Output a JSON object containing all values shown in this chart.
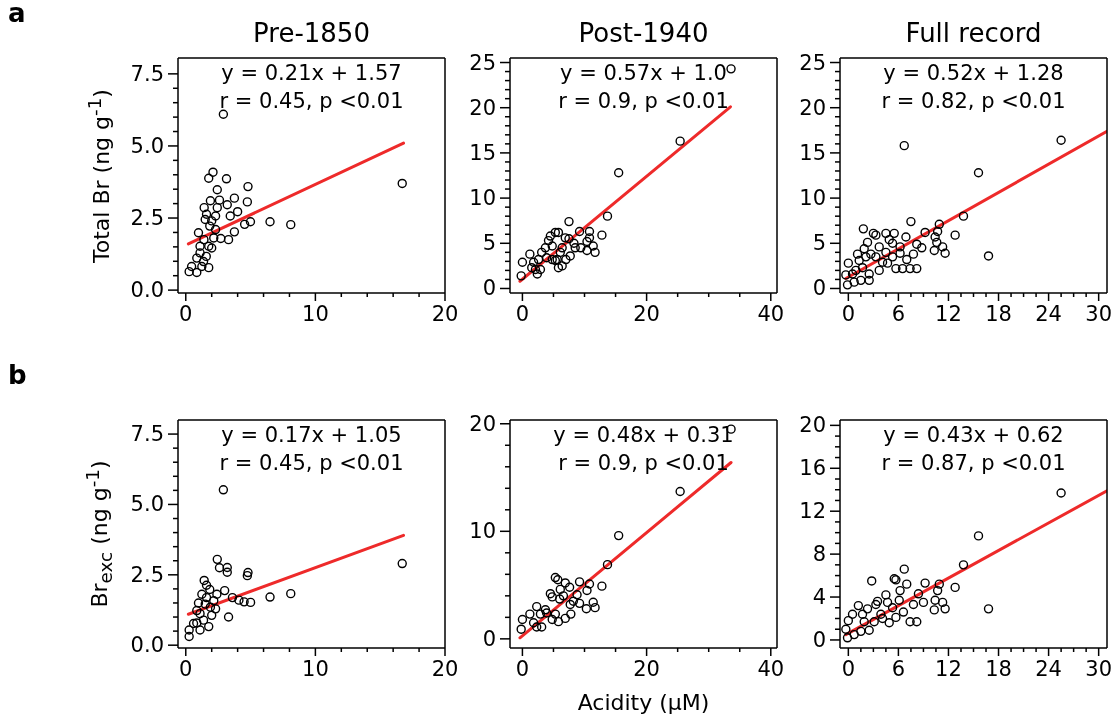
{
  "chart_data": [
    {
      "type": "scatter",
      "title": "Pre-1850",
      "ylabel": "Total Br (ng g$^{-1}$)",
      "annotations": [
        "a",
        "y = 0.21x + 1.57",
        "r = 0.45, p <0.01"
      ],
      "xlim": [
        -0.6,
        20
      ],
      "ylim": [
        -0.1,
        8.05
      ],
      "xticks": [
        0,
        {
          "value": 2,
          "label": null
        },
        {
          "value": 4,
          "label": null
        },
        {
          "value": 6,
          "label": null
        },
        {
          "value": 8,
          "label": null
        },
        10,
        {
          "value": 12,
          "label": null
        },
        {
          "value": 14,
          "label": null
        },
        {
          "value": 16,
          "label": null
        },
        {
          "value": 18,
          "label": null
        },
        20
      ],
      "yticks": [
        {
          "value": 0,
          "label": "0.0"
        },
        {
          "value": 0.5,
          "label": null
        },
        {
          "value": 1,
          "label": null
        },
        {
          "value": 1.5,
          "label": null
        },
        {
          "value": 2,
          "label": null
        },
        {
          "value": 2.5,
          "label": "2.5"
        },
        {
          "value": 3,
          "label": null
        },
        {
          "value": 3.5,
          "label": null
        },
        {
          "value": 4,
          "label": null
        },
        {
          "value": 4.5,
          "label": null
        },
        {
          "value": 5,
          "label": "5.0"
        },
        {
          "value": 5.5,
          "label": null
        },
        {
          "value": 6,
          "label": null
        },
        {
          "value": 6.5,
          "label": null
        },
        {
          "value": 7,
          "label": null
        },
        {
          "value": 7.5,
          "label": "7.5"
        }
      ],
      "series": [
        {
          "type": "scatter",
          "marker": "circle",
          "color": "#000000",
          "x": [
            2.9,
            2.1,
            1.77,
            3.14,
            4.8,
            2.43,
            16.7,
            3.75,
            1.9,
            2.6,
            4.75,
            3.2,
            1.42,
            4.0,
            3.43,
            2.3,
            1.5,
            6.5,
            8.1,
            4.99,
            4.54,
            3.75,
            3.3,
            2.7,
            0.98,
            1.4,
            1.77,
            1.1,
            0.85,
            1.77,
            0.26,
            0.85,
            1.37,
            2.0,
            2.3,
            1.85,
            1.1,
            1.58,
            2.16,
            1.24,
            0.45,
            1.6,
            2.0,
            2.43
          ],
          "values": [
            6.1,
            4.09,
            3.88,
            3.86,
            3.59,
            3.48,
            3.7,
            3.19,
            3.1,
            3.12,
            3.06,
            2.96,
            2.86,
            2.72,
            2.57,
            2.57,
            2.45,
            2.37,
            2.27,
            2.37,
            2.28,
            2.02,
            1.75,
            1.79,
            1.99,
            1.75,
            1.52,
            1.29,
            1.11,
            0.78,
            0.64,
            0.61,
            0.99,
            1.46,
            2.1,
            2.22,
            1.52,
            1.17,
            1.81,
            0.82,
            0.82,
            2.63,
            2.4,
            2.86
          ]
        },
        {
          "type": "line",
          "marker": "none",
          "color": "#ee2a2a",
          "x": [
            0.2,
            16.8
          ],
          "values": [
            1.6,
            5.1
          ]
        }
      ]
    },
    {
      "type": "scatter",
      "title": "Post-1940",
      "annotations": [
        "y = 0.57x + 1.0",
        "r = 0.9, p <0.01"
      ],
      "xlim": [
        -2,
        41
      ],
      "ylim": [
        -0.5,
        25.5
      ],
      "xticks": [
        0,
        {
          "value": 5,
          "label": null
        },
        {
          "value": 10,
          "label": null
        },
        {
          "value": 15,
          "label": null
        },
        20,
        {
          "value": 25,
          "label": null
        },
        {
          "value": 30,
          "label": null
        },
        {
          "value": 35,
          "label": null
        },
        40
      ],
      "yticks": [
        0,
        {
          "value": 1,
          "label": null
        },
        {
          "value": 2,
          "label": null
        },
        {
          "value": 3,
          "label": null
        },
        {
          "value": 4,
          "label": null
        },
        5,
        {
          "value": 6,
          "label": null
        },
        {
          "value": 7,
          "label": null
        },
        {
          "value": 8,
          "label": null
        },
        {
          "value": 9,
          "label": null
        },
        10,
        {
          "value": 11,
          "label": null
        },
        {
          "value": 12,
          "label": null
        },
        {
          "value": 13,
          "label": null
        },
        {
          "value": 14,
          "label": null
        },
        15,
        {
          "value": 16,
          "label": null
        },
        {
          "value": 17,
          "label": null
        },
        {
          "value": 18,
          "label": null
        },
        {
          "value": 19,
          "label": null
        },
        20,
        {
          "value": 21,
          "label": null
        },
        {
          "value": 22,
          "label": null
        },
        {
          "value": 23,
          "label": null
        },
        {
          "value": 24,
          "label": null
        },
        25
      ],
      "series": [
        {
          "type": "scatter",
          "marker": "circle",
          "color": "#000000",
          "x": [
            33.6,
            25.4,
            15.5,
            13.7,
            7.5,
            12.8,
            9.2,
            10.8,
            10.8,
            10.4,
            11.4,
            11.7,
            10.4,
            9.4,
            8.3,
            8.5,
            7.7,
            7.0,
            6.4,
            5.8,
            5.6,
            6.4,
            6.9,
            5.8,
            5.3,
            4.5,
            4.2,
            4.8,
            3.7,
            3.1,
            3.9,
            4.8,
            5.3,
            2.6,
            1.8,
            1.2,
            0,
            2.1,
            1.5,
            2.4,
            2.9,
            -0.2,
            6.1,
            7.5
          ],
          "values": [
            24.3,
            16.3,
            12.8,
            8.0,
            7.4,
            5.9,
            6.3,
            6.3,
            5.6,
            5.2,
            4.7,
            4.0,
            4.2,
            4.5,
            5.0,
            4.5,
            3.6,
            3.2,
            2.5,
            2.3,
            3.2,
            4.5,
            5.6,
            6.2,
            6.2,
            5.8,
            5.3,
            4.7,
            4.5,
            4.0,
            3.4,
            3.2,
            3.1,
            3.2,
            2.9,
            3.8,
            2.9,
            2.1,
            2.3,
            1.6,
            2.1,
            1.4,
            4.0,
            5.5
          ]
        },
        {
          "type": "line",
          "marker": "none",
          "color": "#ee2a2a",
          "x": [
            -0.4,
            33.5
          ],
          "values": [
            0.8,
            20.1
          ]
        }
      ]
    },
    {
      "type": "scatter",
      "title": "Full record",
      "annotations": [
        "y = 0.52x + 1.28",
        "r = 0.82, p <0.01"
      ],
      "xlim": [
        -1,
        31
      ],
      "ylim": [
        -0.5,
        25.5
      ],
      "xticks": [
        0,
        {
          "value": 1.5,
          "label": null
        },
        {
          "value": 3,
          "label": null
        },
        {
          "value": 4.5,
          "label": null
        },
        6,
        {
          "value": 7.5,
          "label": null
        },
        {
          "value": 9,
          "label": null
        },
        {
          "value": 10.5,
          "label": null
        },
        12,
        {
          "value": 13.5,
          "label": null
        },
        {
          "value": 15,
          "label": null
        },
        {
          "value": 16.5,
          "label": null
        },
        18,
        {
          "value": 19.5,
          "label": null
        },
        {
          "value": 21,
          "label": null
        },
        {
          "value": 22.5,
          "label": null
        },
        24,
        {
          "value": 25.5,
          "label": null
        },
        {
          "value": 27,
          "label": null
        },
        {
          "value": 28.5,
          "label": null
        },
        30
      ],
      "yticks": [
        0,
        {
          "value": 1,
          "label": null
        },
        {
          "value": 2,
          "label": null
        },
        {
          "value": 3,
          "label": null
        },
        {
          "value": 4,
          "label": null
        },
        5,
        {
          "value": 6,
          "label": null
        },
        {
          "value": 7,
          "label": null
        },
        {
          "value": 8,
          "label": null
        },
        {
          "value": 9,
          "label": null
        },
        10,
        {
          "value": 11,
          "label": null
        },
        {
          "value": 12,
          "label": null
        },
        {
          "value": 13,
          "label": null
        },
        {
          "value": 14,
          "label": null
        },
        15,
        {
          "value": 16,
          "label": null
        },
        {
          "value": 17,
          "label": null
        },
        {
          "value": 18,
          "label": null
        },
        {
          "value": 19,
          "label": null
        },
        20,
        {
          "value": 21,
          "label": null
        },
        {
          "value": 22,
          "label": null
        },
        {
          "value": 23,
          "label": null
        },
        {
          "value": 24,
          "label": null
        },
        25
      ],
      "series": [
        {
          "type": "scatter",
          "marker": "circle",
          "color": "#000000",
          "x": [
            25.5,
            6.7,
            15.6,
            16.8,
            13.8,
            7.5,
            12.8,
            10.9,
            10.7,
            10.4,
            10.6,
            11.3,
            11.6,
            10.3,
            9.2,
            8.2,
            8.8,
            8.2,
            7.4,
            6.5,
            5.7,
            7.0,
            7.8,
            6.9,
            5.5,
            4.9,
            4.5,
            3.3,
            3.0,
            1.8,
            2.3,
            3.7,
            4.5,
            5.3,
            6.2,
            4.7,
            3.7,
            2.5,
            1.7,
            1.1,
            1.3,
            2.1,
            2.7,
            0.5,
            0,
            -0.3,
            -0.1,
            0.7,
            1.5,
            2.5,
            0.9,
            1.9,
            3.3,
            4.1,
            5.3,
            6.2
          ],
          "values": [
            16.4,
            15.8,
            12.8,
            3.6,
            8.0,
            7.4,
            5.9,
            7.1,
            6.3,
            5.7,
            5.1,
            4.6,
            3.9,
            4.2,
            6.2,
            4.9,
            4.5,
            2.2,
            2.2,
            2.2,
            2.2,
            3.2,
            3.8,
            5.7,
            6.1,
            5.4,
            6.1,
            5.9,
            6.1,
            6.6,
            5.1,
            4.6,
            4.0,
            3.5,
            3.9,
            2.8,
            2.0,
            1.6,
            2.3,
            3.8,
            3.1,
            3.5,
            3.8,
            1.6,
            2.8,
            1.5,
            0.4,
            0.7,
            0.9,
            0.9,
            2.0,
            4.4,
            3.5,
            2.9,
            5.0,
            4.6
          ]
        },
        {
          "type": "line",
          "marker": "none",
          "color": "#ee2a2a",
          "x": [
            -0.3,
            31
          ],
          "values": [
            1.1,
            17.4
          ]
        }
      ]
    },
    {
      "type": "scatter",
      "ylabel": "Br$_{exc}$ (ng g$^{-1}$)",
      "annotations": [
        "b",
        "y = 0.17x + 1.05",
        "r = 0.45, p <0.01"
      ],
      "xlim": [
        -0.6,
        20
      ],
      "ylim": [
        -0.1,
        8.0
      ],
      "xticks": [
        0,
        {
          "value": 2,
          "label": null
        },
        {
          "value": 4,
          "label": null
        },
        {
          "value": 6,
          "label": null
        },
        {
          "value": 8,
          "label": null
        },
        10,
        {
          "value": 12,
          "label": null
        },
        {
          "value": 14,
          "label": null
        },
        {
          "value": 16,
          "label": null
        },
        {
          "value": 18,
          "label": null
        },
        20
      ],
      "yticks": [
        {
          "value": 0,
          "label": "0.0"
        },
        {
          "value": 0.5,
          "label": null
        },
        {
          "value": 1,
          "label": null
        },
        {
          "value": 1.5,
          "label": null
        },
        {
          "value": 2,
          "label": null
        },
        {
          "value": 2.5,
          "label": "2.5"
        },
        {
          "value": 3,
          "label": null
        },
        {
          "value": 3.5,
          "label": null
        },
        {
          "value": 4,
          "label": null
        },
        {
          "value": 4.5,
          "label": null
        },
        {
          "value": 5,
          "label": "5.0"
        },
        {
          "value": 5.5,
          "label": null
        },
        {
          "value": 6,
          "label": null
        },
        {
          "value": 6.5,
          "label": null
        },
        {
          "value": 7,
          "label": null
        },
        {
          "value": 7.5,
          "label": "7.5"
        }
      ],
      "series": [
        {
          "type": "scatter",
          "marker": "circle",
          "color": "#000000",
          "x": [
            2.9,
            16.7,
            2.43,
            2.6,
            3.2,
            3.2,
            4.8,
            4.75,
            6.5,
            8.1,
            5.0,
            4.5,
            4.1,
            3.6,
            3.3,
            3.0,
            2.4,
            1.42,
            1.6,
            1.85,
            1.24,
            0.98,
            1.5,
            2.16,
            1.9,
            1.1,
            1.37,
            0.85,
            0.26,
            0.26,
            1.77,
            2.0,
            2.3,
            1.1,
            0.6,
            1.6,
            0.85
          ],
          "values": [
            5.52,
            2.9,
            3.05,
            2.75,
            2.76,
            2.59,
            2.58,
            2.47,
            1.71,
            1.83,
            1.52,
            1.54,
            1.6,
            1.69,
            1.0,
            1.94,
            1.81,
            2.3,
            2.13,
            1.98,
            1.81,
            1.5,
            1.46,
            1.58,
            1.35,
            1.12,
            0.89,
            0.79,
            0.54,
            0.31,
            0.66,
            1.06,
            1.29,
            0.54,
            0.77,
            1.69,
            1.23
          ]
        },
        {
          "type": "line",
          "marker": "none",
          "color": "#ee2a2a",
          "x": [
            0.2,
            16.8
          ],
          "values": [
            1.1,
            3.9
          ]
        }
      ]
    },
    {
      "type": "scatter",
      "xlabel": "Acidity (µM)",
      "annotations": [
        "y = 0.48x + 0.31",
        "r = 0.9, p <0.01"
      ],
      "xlim": [
        -2,
        41
      ],
      "ylim": [
        -0.85,
        20.35
      ],
      "xticks": [
        0,
        {
          "value": 5,
          "label": null
        },
        {
          "value": 10,
          "label": null
        },
        {
          "value": 15,
          "label": null
        },
        20,
        {
          "value": 25,
          "label": null
        },
        {
          "value": 30,
          "label": null
        },
        {
          "value": 35,
          "label": null
        },
        40
      ],
      "yticks": [
        0,
        {
          "value": 2,
          "label": null
        },
        {
          "value": 4,
          "label": null
        },
        {
          "value": 6,
          "label": null
        },
        {
          "value": 8,
          "label": null
        },
        10,
        {
          "value": 12,
          "label": null
        },
        {
          "value": 14,
          "label": null
        },
        {
          "value": 16,
          "label": null
        },
        {
          "value": 18,
          "label": null
        },
        20
      ],
      "series": [
        {
          "type": "scatter",
          "marker": "circle",
          "color": "#000000",
          "x": [
            33.6,
            25.4,
            15.5,
            13.7,
            12.8,
            9.2,
            10.8,
            10.4,
            11.4,
            11.7,
            10.3,
            9.2,
            8.2,
            8.8,
            7.6,
            6.9,
            5.3,
            5.7,
            6.1,
            6.6,
            4.5,
            4.8,
            6.0,
            7.8,
            6.9,
            5.8,
            4.8,
            5.3,
            3.7,
            2.9,
            2.3,
            1.2,
            0,
            -0.2,
            1.8,
            2.3,
            3.1,
            3.9,
            7.7
          ],
          "values": [
            19.5,
            13.7,
            9.6,
            6.9,
            4.9,
            5.3,
            5.1,
            4.5,
            3.4,
            2.9,
            2.8,
            3.3,
            3.5,
            4.1,
            4.8,
            5.2,
            5.7,
            5.5,
            4.6,
            4.0,
            4.2,
            3.9,
            3.7,
            2.3,
            1.9,
            1.6,
            1.8,
            2.3,
            2.7,
            2.3,
            3.0,
            2.3,
            1.8,
            0.9,
            1.5,
            1.1,
            1.1,
            2.4,
            3.2
          ]
        },
        {
          "type": "line",
          "marker": "none",
          "color": "#ee2a2a",
          "x": [
            -0.4,
            33.6
          ],
          "values": [
            0.1,
            16.4
          ]
        }
      ]
    },
    {
      "type": "scatter",
      "annotations": [
        "y = 0.43x + 0.62",
        "r = 0.87, p <0.01"
      ],
      "xlim": [
        -1,
        31
      ],
      "ylim": [
        -0.75,
        20.5
      ],
      "xticks": [
        0,
        {
          "value": 1.5,
          "label": null
        },
        {
          "value": 3,
          "label": null
        },
        {
          "value": 4.5,
          "label": null
        },
        6,
        {
          "value": 7.5,
          "label": null
        },
        {
          "value": 9,
          "label": null
        },
        {
          "value": 10.5,
          "label": null
        },
        12,
        {
          "value": 13.5,
          "label": null
        },
        {
          "value": 15,
          "label": null
        },
        {
          "value": 16.5,
          "label": null
        },
        18,
        {
          "value": 19.5,
          "label": null
        },
        {
          "value": 21,
          "label": null
        },
        {
          "value": 22.5,
          "label": null
        },
        24,
        {
          "value": 25.5,
          "label": null
        },
        {
          "value": 27,
          "label": null
        },
        {
          "value": 28.5,
          "label": null
        },
        30
      ],
      "yticks": [
        0,
        {
          "value": 1,
          "label": null
        },
        {
          "value": 2,
          "label": null
        },
        {
          "value": 3,
          "label": null
        },
        4,
        {
          "value": 5,
          "label": null
        },
        {
          "value": 6,
          "label": null
        },
        {
          "value": 7,
          "label": null
        },
        8,
        {
          "value": 9,
          "label": null
        },
        {
          "value": 10,
          "label": null
        },
        {
          "value": 11,
          "label": null
        },
        12,
        {
          "value": 13,
          "label": null
        },
        {
          "value": 14,
          "label": null
        },
        {
          "value": 15,
          "label": null
        },
        16,
        {
          "value": 17,
          "label": null
        },
        {
          "value": 18,
          "label": null
        },
        {
          "value": 19,
          "label": null
        },
        20
      ],
      "series": [
        {
          "type": "scatter",
          "marker": "circle",
          "color": "#000000",
          "x": [
            25.5,
            15.6,
            13.8,
            16.8,
            12.8,
            10.9,
            10.7,
            10.4,
            11.3,
            11.6,
            10.3,
            9.2,
            8.4,
            9.0,
            8.2,
            7.4,
            6.7,
            7.0,
            5.5,
            5.7,
            4.5,
            4.7,
            2.8,
            3.5,
            6.2,
            6.1,
            6.6,
            5.7,
            4.9,
            3.9,
            3.3,
            2.3,
            1.7,
            1.2,
            0.5,
            0,
            -0.3,
            -0.1,
            0.7,
            1.5,
            2.5,
            1.9,
            3.1,
            4.1,
            5.3,
            7.8
          ],
          "values": [
            13.7,
            9.7,
            7.0,
            2.9,
            4.9,
            5.2,
            4.6,
            3.7,
            3.5,
            2.9,
            2.8,
            5.3,
            4.3,
            3.5,
            1.7,
            1.7,
            6.6,
            5.2,
            5.7,
            5.6,
            4.2,
            3.5,
            5.5,
            3.6,
            4.6,
            3.7,
            2.6,
            2.1,
            1.6,
            2.4,
            3.3,
            2.9,
            2.4,
            3.2,
            2.4,
            1.8,
            1.0,
            0.2,
            0.5,
            0.8,
            0.9,
            1.7,
            1.7,
            2.0,
            3.0,
            3.3
          ]
        },
        {
          "type": "line",
          "marker": "none",
          "color": "#ee2a2a",
          "x": [
            -0.3,
            31
          ],
          "values": [
            0.5,
            13.9
          ]
        }
      ]
    }
  ]
}
